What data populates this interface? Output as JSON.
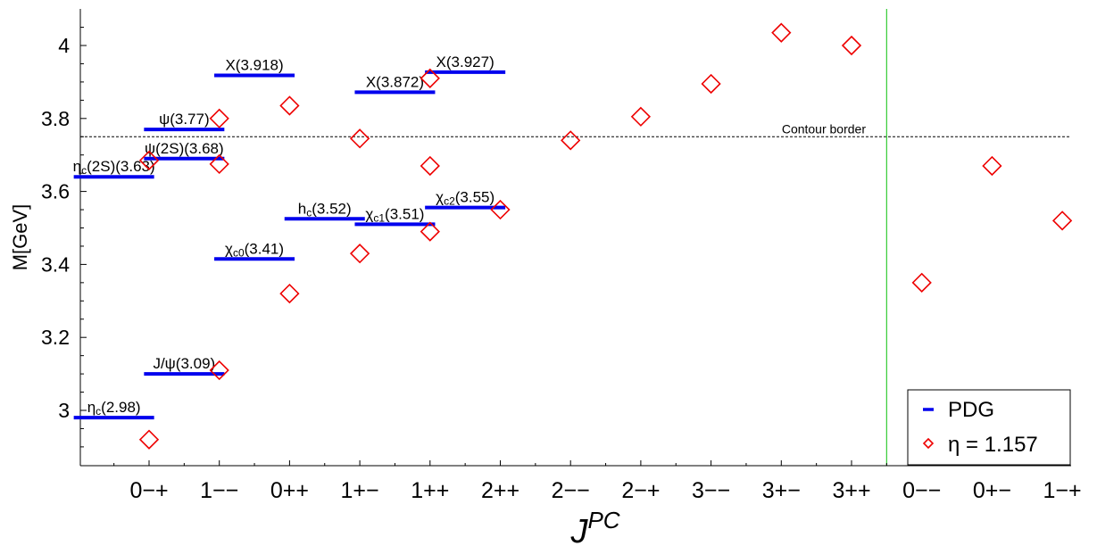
{
  "chart_data": {
    "type": "scatter",
    "xlabel": "J",
    "xlabel_sup": "PC",
    "ylabel": "M[GeV]",
    "ylim": [
      2.84,
      4.1
    ],
    "yticks": [
      "3",
      "3.2",
      "3.4",
      "3.6",
      "3.8",
      "4"
    ],
    "yticks_values": [
      3.0,
      3.2,
      3.4,
      3.6,
      3.8,
      4.0
    ],
    "categories": [
      "0−+",
      "1−−",
      "0++",
      "1+−",
      "1++",
      "2++",
      "2−−",
      "2−+",
      "3−−",
      "3+−",
      "3++",
      "0−−",
      "0+−",
      "1−+"
    ],
    "divider_after_index": 10,
    "divider_color": "#33cc33",
    "contour_border": {
      "y": 3.75,
      "label": "Contour border"
    },
    "legend": {
      "position": "bottom-right",
      "entries": [
        {
          "label": "PDG",
          "color": "#0000ee",
          "marker": "line"
        },
        {
          "label": "η = 1.157",
          "color": "#ee0000",
          "marker": "diamond"
        }
      ]
    },
    "series": [
      {
        "name": "PDG",
        "color": "#0000ee",
        "marker": "line",
        "points": [
          {
            "x": -0.5,
            "y": 2.98,
            "label": "η",
            "sub": "c",
            "suffix": "(2.98)"
          },
          {
            "x": -0.5,
            "y": 3.64,
            "label": "η",
            "sub": "c",
            "suffix": "(2S)(3.63)"
          },
          {
            "x": 0.5,
            "y": 3.1,
            "label": "J/ψ(3.09)",
            "sub": "",
            "suffix": ""
          },
          {
            "x": 0.5,
            "y": 3.69,
            "label": "ψ(2S)(3.68)",
            "sub": "",
            "suffix": ""
          },
          {
            "x": 0.5,
            "y": 3.77,
            "label": "ψ(3.77)",
            "sub": "",
            "suffix": ""
          },
          {
            "x": 1.5,
            "y": 3.415,
            "label": "χ",
            "sub": "c0",
            "suffix": "(3.41)"
          },
          {
            "x": 1.5,
            "y": 3.918,
            "label": "X(3.918)",
            "sub": "",
            "suffix": ""
          },
          {
            "x": 2.5,
            "y": 3.525,
            "label": "h",
            "sub": "c",
            "suffix": "(3.52)"
          },
          {
            "x": 3.5,
            "y": 3.51,
            "label": "χ",
            "sub": "c1",
            "suffix": "(3.51)"
          },
          {
            "x": 3.5,
            "y": 3.872,
            "label": "X(3.872)",
            "sub": "",
            "suffix": ""
          },
          {
            "x": 4.5,
            "y": 3.556,
            "label": "χ",
            "sub": "c2",
            "suffix": "(3.55)"
          },
          {
            "x": 4.5,
            "y": 3.927,
            "label": "X(3.927)",
            "sub": "",
            "suffix": ""
          }
        ]
      },
      {
        "name": "η = 1.157",
        "color": "#ee0000",
        "marker": "diamond",
        "points": [
          {
            "x": 0,
            "y": 2.92
          },
          {
            "x": 0,
            "y": 3.685
          },
          {
            "x": 1,
            "y": 3.11
          },
          {
            "x": 1,
            "y": 3.675
          },
          {
            "x": 1,
            "y": 3.8
          },
          {
            "x": 2,
            "y": 3.32
          },
          {
            "x": 2,
            "y": 3.835
          },
          {
            "x": 3,
            "y": 3.43
          },
          {
            "x": 3,
            "y": 3.745
          },
          {
            "x": 4,
            "y": 3.49
          },
          {
            "x": 4,
            "y": 3.67
          },
          {
            "x": 4,
            "y": 3.91
          },
          {
            "x": 5,
            "y": 3.55
          },
          {
            "x": 6,
            "y": 3.74
          },
          {
            "x": 7,
            "y": 3.805
          },
          {
            "x": 8,
            "y": 3.895
          },
          {
            "x": 9,
            "y": 4.035
          },
          {
            "x": 10,
            "y": 4.0
          },
          {
            "x": 11,
            "y": 3.35
          },
          {
            "x": 12,
            "y": 3.67
          },
          {
            "x": 13,
            "y": 3.52
          }
        ]
      }
    ]
  }
}
